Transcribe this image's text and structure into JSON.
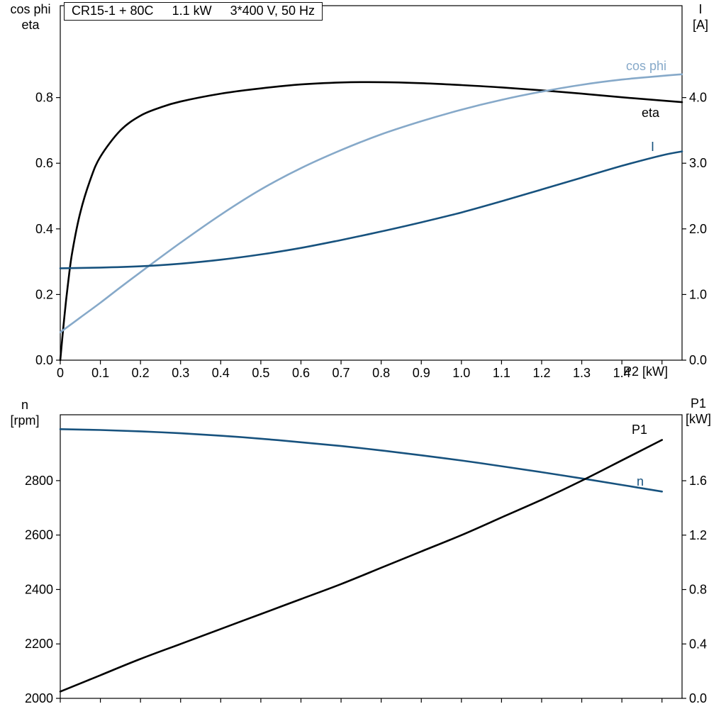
{
  "title": {
    "model": "CR15-1 + 80C",
    "power": "1.1 kW",
    "supply": "3*400 V, 50 Hz"
  },
  "colors": {
    "black": "#000000",
    "dark_blue": "#17527e",
    "light_blue": "#86a9c9",
    "axis": "#000000"
  },
  "axis_titles": {
    "top_left_line1": "cos phi",
    "top_left_line2": "eta",
    "top_right_line1": "I",
    "top_right_line2": "[A]",
    "bottom_left_line1": "n",
    "bottom_left_line2": "[rpm]",
    "bottom_right_line1": "P1",
    "bottom_right_line2": "[kW]",
    "x_axis": "P2 [kW]"
  },
  "curve_labels": {
    "cos_phi": "cos phi",
    "eta": "eta",
    "current": "I",
    "p1": "P1",
    "speed": "n"
  },
  "chart_data": [
    {
      "type": "line",
      "title": "CR15-1 + 80C 1.1 kW 3*400 V, 50 Hz",
      "xlabel": "P2 [kW]",
      "grid": false,
      "x_axis": {
        "lim": [
          0,
          1.55
        ],
        "ticks": [
          0,
          0.1,
          0.2,
          0.3,
          0.4,
          0.5,
          0.6,
          0.7,
          0.8,
          0.9,
          1.0,
          1.1,
          1.2,
          1.3,
          1.4,
          1.5
        ],
        "tick_labels": [
          "0",
          "0.1",
          "0.2",
          "0.3",
          "0.4",
          "0.5",
          "0.6",
          "0.7",
          "0.8",
          "0.9",
          "1.0",
          "1.1",
          "1.2",
          "1.3",
          "1.4",
          ""
        ],
        "show_tick_labels": true
      },
      "left_axis": {
        "label": "cos phi / eta",
        "lim": [
          0,
          1.08
        ],
        "ticks": [
          0,
          0.2,
          0.4,
          0.6,
          0.8
        ],
        "tick_labels": [
          "0.0",
          "0.2",
          "0.4",
          "0.6",
          "0.8"
        ]
      },
      "right_axis": {
        "label": "I [A]",
        "lim": [
          0,
          5.4
        ],
        "ticks": [
          0,
          1,
          2,
          3,
          4
        ],
        "tick_labels": [
          "0.0",
          "1.0",
          "2.0",
          "3.0",
          "4.0"
        ]
      },
      "series": [
        {
          "name": "eta",
          "axis": "left",
          "color": "black",
          "x": [
            0,
            0.01,
            0.02,
            0.03,
            0.05,
            0.075,
            0.1,
            0.15,
            0.2,
            0.25,
            0.3,
            0.4,
            0.5,
            0.6,
            0.7,
            0.8,
            0.9,
            1.0,
            1.1,
            1.2,
            1.3,
            1.4,
            1.5,
            1.55
          ],
          "y": [
            0,
            0.13,
            0.24,
            0.33,
            0.45,
            0.55,
            0.62,
            0.7,
            0.745,
            0.77,
            0.788,
            0.812,
            0.828,
            0.84,
            0.846,
            0.847,
            0.844,
            0.838,
            0.831,
            0.822,
            0.812,
            0.801,
            0.791,
            0.786
          ]
        },
        {
          "name": "cos phi",
          "axis": "left",
          "color": "light_blue",
          "x": [
            0,
            0.05,
            0.1,
            0.15,
            0.2,
            0.3,
            0.4,
            0.5,
            0.6,
            0.7,
            0.8,
            0.9,
            1.0,
            1.1,
            1.2,
            1.3,
            1.4,
            1.5,
            1.55
          ],
          "y": [
            0.085,
            0.13,
            0.175,
            0.222,
            0.268,
            0.358,
            0.443,
            0.52,
            0.585,
            0.64,
            0.688,
            0.728,
            0.763,
            0.793,
            0.818,
            0.839,
            0.855,
            0.866,
            0.871
          ]
        },
        {
          "name": "I",
          "axis": "right",
          "color": "dark_blue",
          "x": [
            0,
            0.1,
            0.2,
            0.3,
            0.4,
            0.5,
            0.6,
            0.7,
            0.8,
            0.9,
            1.0,
            1.1,
            1.2,
            1.3,
            1.4,
            1.5,
            1.55
          ],
          "y": [
            1.4,
            1.41,
            1.43,
            1.47,
            1.53,
            1.61,
            1.71,
            1.83,
            1.96,
            2.1,
            2.25,
            2.42,
            2.6,
            2.78,
            2.96,
            3.12,
            3.18
          ]
        }
      ]
    },
    {
      "type": "line",
      "xlabel": "P2 [kW]",
      "grid": false,
      "x_axis": {
        "lim": [
          0,
          1.55
        ],
        "ticks": [
          0,
          0.1,
          0.2,
          0.3,
          0.4,
          0.5,
          0.6,
          0.7,
          0.8,
          0.9,
          1.0,
          1.1,
          1.2,
          1.3,
          1.4,
          1.5
        ],
        "tick_labels": [
          "",
          "",
          "",
          "",
          "",
          "",
          "",
          "",
          "",
          "",
          "",
          "",
          "",
          "",
          "",
          ""
        ],
        "show_tick_labels": false
      },
      "left_axis": {
        "label": "n [rpm]",
        "lim": [
          2000,
          3042
        ],
        "ticks": [
          2000,
          2200,
          2400,
          2600,
          2800
        ],
        "tick_labels": [
          "2000",
          "2200",
          "2400",
          "2600",
          "2800"
        ]
      },
      "right_axis": {
        "label": "P1 [kW]",
        "lim": [
          0,
          2.085
        ],
        "ticks": [
          0,
          0.4,
          0.8,
          1.2,
          1.6
        ],
        "tick_labels": [
          "0.0",
          "0.4",
          "0.8",
          "1.2",
          "1.6"
        ]
      },
      "series": [
        {
          "name": "n",
          "axis": "left",
          "color": "dark_blue",
          "x": [
            0,
            0.1,
            0.2,
            0.3,
            0.4,
            0.5,
            0.6,
            0.7,
            0.8,
            0.9,
            1.0,
            1.1,
            1.2,
            1.3,
            1.4,
            1.5
          ],
          "y": [
            2989,
            2986,
            2981,
            2974,
            2965,
            2954,
            2941,
            2927,
            2911,
            2893,
            2874,
            2853,
            2831,
            2808,
            2784,
            2760
          ]
        },
        {
          "name": "P1",
          "axis": "right",
          "color": "black",
          "x": [
            0,
            0.1,
            0.2,
            0.3,
            0.4,
            0.5,
            0.6,
            0.7,
            0.8,
            0.9,
            1.0,
            1.1,
            1.2,
            1.3,
            1.4,
            1.5
          ],
          "y": [
            0.05,
            0.17,
            0.29,
            0.4,
            0.51,
            0.62,
            0.73,
            0.84,
            0.96,
            1.08,
            1.2,
            1.33,
            1.46,
            1.6,
            1.75,
            1.9
          ]
        }
      ]
    }
  ]
}
